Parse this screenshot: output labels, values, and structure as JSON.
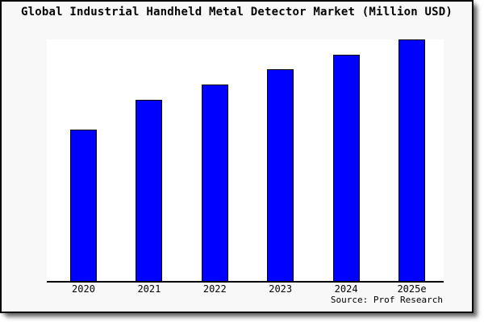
{
  "title": "Global Industrial Handheld Metal Detector Market (Million USD)",
  "source_credit": "Source: Prof Research",
  "colors": {
    "bar_fill": "#0000FE",
    "bar_border": "#000000",
    "card_background": "#F8F8F8",
    "plot_background": "#FFFFFF",
    "frame_border": "#000000",
    "text": "#000000"
  },
  "chart_data": {
    "type": "bar",
    "title": "Global Industrial Handheld Metal Detector Market (Million USD)",
    "categories": [
      "2020",
      "2021",
      "2022",
      "2023",
      "2024",
      "2025e"
    ],
    "values": [
      62.7,
      75.0,
      81.3,
      87.7,
      93.7,
      100.0
    ],
    "xlabel": "",
    "ylabel": "",
    "ylim": [
      0,
      100
    ],
    "grid": false,
    "legend": false,
    "y_axis_ticks_visible": false,
    "value_note": "No numeric y-axis or data labels are shown in the image; values are relative bar heights normalized so the tallest bar (2025e) = 100."
  }
}
